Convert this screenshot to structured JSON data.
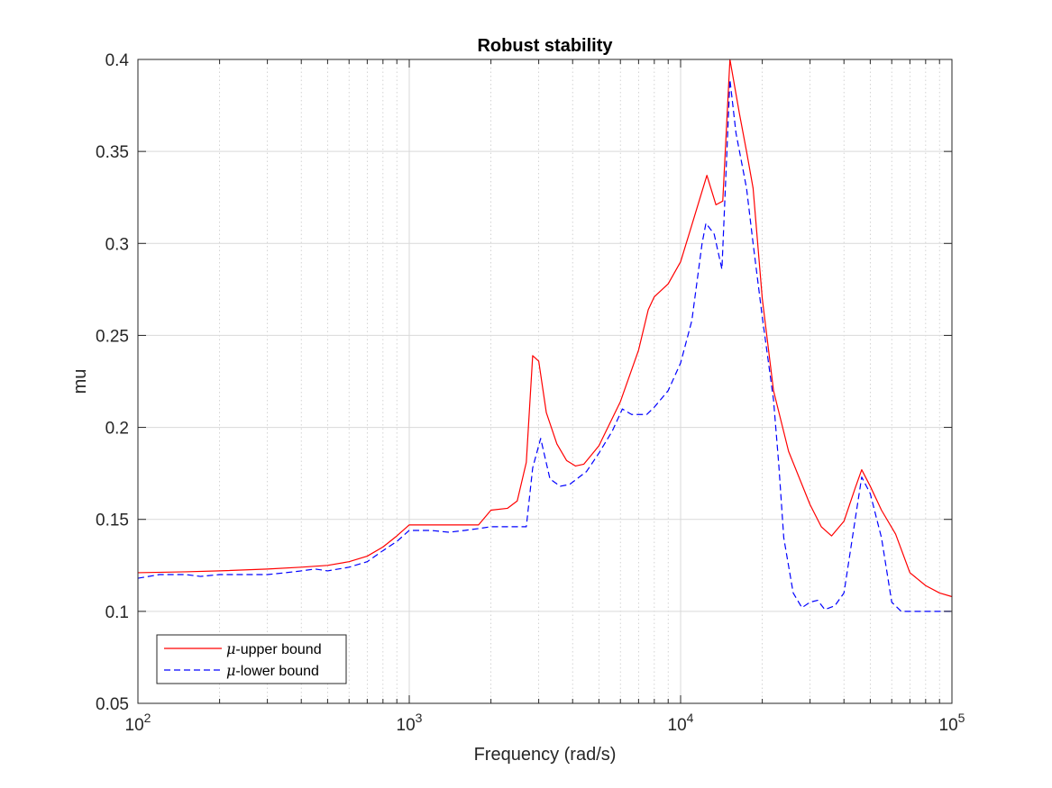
{
  "chart_data": {
    "type": "line",
    "title": "Robust stability",
    "xlabel": "Frequency (rad/s)",
    "ylabel": "mu",
    "x_scale": "log",
    "xlim": [
      100,
      100000
    ],
    "ylim": [
      0.05,
      0.4
    ],
    "grid": true,
    "legend_position": "bottom-left",
    "x_ticks": [
      {
        "value": 100,
        "base": "10",
        "exp": "2"
      },
      {
        "value": 1000,
        "base": "10",
        "exp": "3"
      },
      {
        "value": 10000,
        "base": "10",
        "exp": "4"
      },
      {
        "value": 100000,
        "base": "10",
        "exp": "5"
      }
    ],
    "y_ticks": [
      {
        "value": 0.05,
        "label": "0.05"
      },
      {
        "value": 0.1,
        "label": "0.1"
      },
      {
        "value": 0.15,
        "label": "0.15"
      },
      {
        "value": 0.2,
        "label": "0.2"
      },
      {
        "value": 0.25,
        "label": "0.25"
      },
      {
        "value": 0.3,
        "label": "0.3"
      },
      {
        "value": 0.35,
        "label": "0.35"
      },
      {
        "value": 0.4,
        "label": "0.4"
      }
    ],
    "series": [
      {
        "name": "μ-upper bound",
        "legend_symbol": "μ",
        "legend_text": "-upper bound",
        "color": "#ff0000",
        "style": "solid",
        "points": [
          [
            100,
            0.121
          ],
          [
            150,
            0.1215
          ],
          [
            200,
            0.122
          ],
          [
            300,
            0.123
          ],
          [
            400,
            0.124
          ],
          [
            500,
            0.125
          ],
          [
            600,
            0.127
          ],
          [
            700,
            0.13
          ],
          [
            800,
            0.135
          ],
          [
            900,
            0.141
          ],
          [
            1000,
            0.147
          ],
          [
            1200,
            0.147
          ],
          [
            1500,
            0.147
          ],
          [
            1800,
            0.147
          ],
          [
            2000,
            0.155
          ],
          [
            2300,
            0.156
          ],
          [
            2500,
            0.16
          ],
          [
            2700,
            0.181
          ],
          [
            2850,
            0.239
          ],
          [
            3000,
            0.236
          ],
          [
            3200,
            0.208
          ],
          [
            3500,
            0.191
          ],
          [
            3800,
            0.182
          ],
          [
            4100,
            0.179
          ],
          [
            4400,
            0.18
          ],
          [
            5000,
            0.19
          ],
          [
            6000,
            0.214
          ],
          [
            7000,
            0.242
          ],
          [
            7600,
            0.264
          ],
          [
            8000,
            0.271
          ],
          [
            9000,
            0.278
          ],
          [
            10000,
            0.29
          ],
          [
            11000,
            0.31
          ],
          [
            12500,
            0.337
          ],
          [
            13500,
            0.321
          ],
          [
            14300,
            0.323
          ],
          [
            15200,
            0.4
          ],
          [
            16500,
            0.37
          ],
          [
            17500,
            0.35
          ],
          [
            18500,
            0.33
          ],
          [
            20000,
            0.27
          ],
          [
            22000,
            0.22
          ],
          [
            25000,
            0.187
          ],
          [
            30000,
            0.158
          ],
          [
            33000,
            0.146
          ],
          [
            36000,
            0.141
          ],
          [
            40000,
            0.149
          ],
          [
            44000,
            0.167
          ],
          [
            46500,
            0.177
          ],
          [
            50000,
            0.168
          ],
          [
            55000,
            0.155
          ],
          [
            62000,
            0.142
          ],
          [
            70000,
            0.121
          ],
          [
            80000,
            0.114
          ],
          [
            90000,
            0.11
          ],
          [
            100000,
            0.108
          ]
        ]
      },
      {
        "name": "μ-lower bound",
        "legend_symbol": "μ",
        "legend_text": "-lower bound",
        "color": "#0000ff",
        "style": "dashed",
        "points": [
          [
            100,
            0.118
          ],
          [
            120,
            0.12
          ],
          [
            150,
            0.12
          ],
          [
            170,
            0.119
          ],
          [
            200,
            0.12
          ],
          [
            250,
            0.12
          ],
          [
            300,
            0.12
          ],
          [
            350,
            0.121
          ],
          [
            400,
            0.122
          ],
          [
            450,
            0.123
          ],
          [
            500,
            0.122
          ],
          [
            600,
            0.124
          ],
          [
            700,
            0.127
          ],
          [
            800,
            0.133
          ],
          [
            900,
            0.138
          ],
          [
            1000,
            0.144
          ],
          [
            1200,
            0.144
          ],
          [
            1400,
            0.143
          ],
          [
            1600,
            0.144
          ],
          [
            1800,
            0.145
          ],
          [
            2000,
            0.146
          ],
          [
            2300,
            0.146
          ],
          [
            2700,
            0.146
          ],
          [
            2850,
            0.178
          ],
          [
            3050,
            0.194
          ],
          [
            3300,
            0.172
          ],
          [
            3600,
            0.168
          ],
          [
            3900,
            0.169
          ],
          [
            4500,
            0.176
          ],
          [
            5000,
            0.186
          ],
          [
            5600,
            0.198
          ],
          [
            6100,
            0.21
          ],
          [
            6600,
            0.207
          ],
          [
            7500,
            0.207
          ],
          [
            8000,
            0.211
          ],
          [
            9000,
            0.22
          ],
          [
            10000,
            0.235
          ],
          [
            11000,
            0.258
          ],
          [
            12000,
            0.3
          ],
          [
            12400,
            0.311
          ],
          [
            13300,
            0.305
          ],
          [
            14200,
            0.286
          ],
          [
            15200,
            0.389
          ],
          [
            16000,
            0.36
          ],
          [
            17500,
            0.33
          ],
          [
            18500,
            0.3
          ],
          [
            20000,
            0.26
          ],
          [
            22000,
            0.215
          ],
          [
            23000,
            0.18
          ],
          [
            24000,
            0.14
          ],
          [
            26000,
            0.11
          ],
          [
            28000,
            0.102
          ],
          [
            30000,
            0.105
          ],
          [
            32000,
            0.106
          ],
          [
            34000,
            0.101
          ],
          [
            37000,
            0.103
          ],
          [
            40000,
            0.11
          ],
          [
            44000,
            0.15
          ],
          [
            46500,
            0.173
          ],
          [
            50000,
            0.164
          ],
          [
            55000,
            0.14
          ],
          [
            60000,
            0.105
          ],
          [
            65000,
            0.1
          ],
          [
            70000,
            0.1
          ],
          [
            100000,
            0.1
          ]
        ]
      }
    ]
  }
}
